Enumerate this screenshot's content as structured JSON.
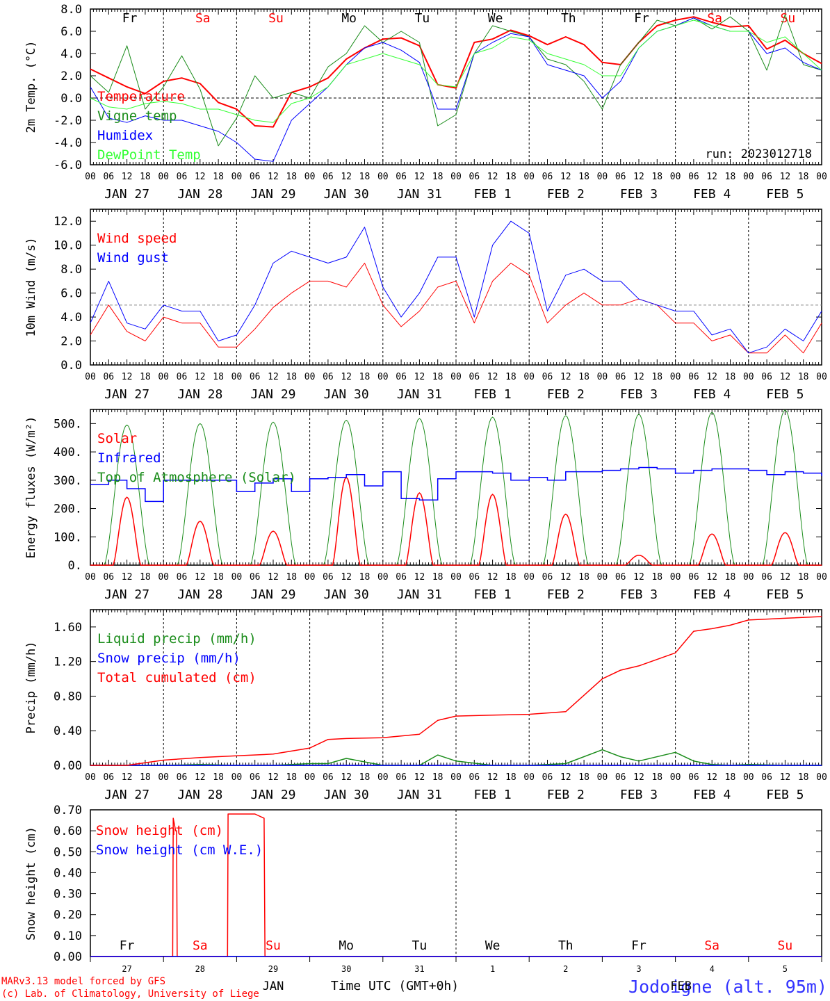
{
  "day_labels": [
    "JAN 27",
    "JAN 28",
    "JAN 29",
    "JAN 30",
    "JAN 31",
    "FEB  1",
    "FEB  2",
    "FEB  3",
    "FEB  4",
    "FEB  5"
  ],
  "hour_labels": [
    "00",
    "06",
    "12",
    "18"
  ],
  "hour_end_label": "00",
  "weekdays": [
    {
      "label": "Fr",
      "color": "#000000"
    },
    {
      "label": "Sa",
      "color": "#ff0000"
    },
    {
      "label": "Su",
      "color": "#ff0000"
    },
    {
      "label": "Mo",
      "color": "#000000"
    },
    {
      "label": "Tu",
      "color": "#000000"
    },
    {
      "label": "We",
      "color": "#000000"
    },
    {
      "label": "Th",
      "color": "#000000"
    },
    {
      "label": "Fr",
      "color": "#000000"
    },
    {
      "label": "Sa",
      "color": "#ff0000"
    },
    {
      "label": "Su",
      "color": "#ff0000"
    }
  ],
  "bottom_axis": {
    "day_numbers": [
      "27",
      "28",
      "29",
      "30",
      "31",
      "1",
      "2",
      "3",
      "4",
      "5"
    ],
    "month_labels": [
      "JAN",
      "FEB"
    ],
    "xlabel": "Time UTC (GMT+0h)"
  },
  "footer": {
    "credit_line1": "MARv3.13 model forced by GFS",
    "credit_line2": "(c) Lab. of Climatology, University of Liege",
    "station": "Jodoigne (alt. 95m)"
  },
  "colors": {
    "red": "#ff0000",
    "green": "#1a8c1a",
    "blue": "#0000ff",
    "lightgreen": "#33ff33",
    "station": "#3333ff"
  },
  "chart_data": [
    {
      "type": "line",
      "ylabel": "2m Temp. (°C)",
      "ylim": [
        -6,
        8
      ],
      "yticks": [
        "8.0",
        "6.0",
        "4.0",
        "2.0",
        "0.0",
        "-2.0",
        "-4.0",
        "-6.0"
      ],
      "ytick_values": [
        8,
        6,
        4,
        2,
        0,
        -2,
        -4,
        -6
      ],
      "ref_line": 0,
      "annotation": "run: 2023012718",
      "show_weekdays": true,
      "x_hours": [
        0,
        6,
        12,
        18,
        24,
        30,
        36,
        42,
        48,
        54,
        60,
        66,
        72,
        78,
        84,
        90,
        96,
        102,
        108,
        114,
        120,
        126,
        132,
        138,
        144,
        150,
        156,
        162,
        168,
        174,
        180,
        186,
        192,
        198,
        204,
        210,
        216,
        222,
        228,
        234,
        240
      ],
      "series": [
        {
          "name": "Temperature",
          "color": "red",
          "width": 2,
          "values": [
            2.6,
            1.8,
            1.0,
            0.4,
            1.5,
            1.8,
            1.3,
            -0.4,
            -1.0,
            -2.5,
            -2.6,
            0.5,
            1.0,
            1.8,
            3.5,
            4.5,
            5.3,
            5.4,
            4.7,
            1.2,
            0.9,
            5.0,
            5.3,
            6.1,
            5.6,
            4.8,
            5.5,
            4.8,
            3.2,
            3.0,
            5.0,
            6.5,
            7.0,
            7.3,
            6.8,
            6.4,
            6.5,
            4.4,
            5.2,
            4.0,
            3.1
          ]
        },
        {
          "name": "Vigne temp",
          "color": "green",
          "width": 1,
          "values": [
            2.0,
            0.5,
            4.7,
            -1.0,
            1.0,
            3.8,
            0.8,
            -4.3,
            -1.8,
            2.0,
            0.0,
            0.5,
            0.0,
            2.8,
            4.0,
            6.5,
            5.0,
            6.0,
            5.0,
            -2.5,
            -1.5,
            4.0,
            6.5,
            6.0,
            5.5,
            3.5,
            3.0,
            1.5,
            -1.0,
            3.0,
            5.0,
            7.0,
            6.5,
            7.2,
            6.2,
            7.3,
            6.0,
            2.5,
            7.5,
            3.0,
            2.5
          ]
        },
        {
          "name": "Humidex",
          "color": "blue",
          "width": 1,
          "values": [
            1.0,
            -1.8,
            -2.2,
            -1.6,
            -2.0,
            -2.0,
            -2.5,
            -3.0,
            -4.0,
            -5.5,
            -5.7,
            -2.0,
            -0.5,
            1.0,
            3.0,
            4.5,
            5.0,
            4.3,
            3.2,
            -1.0,
            -1.0,
            4.0,
            5.0,
            5.8,
            5.5,
            3.0,
            2.5,
            2.0,
            0.0,
            1.5,
            4.5,
            6.0,
            6.5,
            7.2,
            6.5,
            6.0,
            6.0,
            4.0,
            4.5,
            3.2,
            2.5
          ]
        },
        {
          "name": "DewPoint Temp",
          "color": "lightgreen",
          "width": 1,
          "values": [
            0.0,
            -0.8,
            -1.0,
            -0.5,
            -0.3,
            -0.5,
            -1.0,
            -1.0,
            -1.5,
            -2.0,
            -2.2,
            -0.5,
            0.0,
            1.0,
            3.0,
            3.5,
            4.0,
            3.5,
            3.0,
            1.2,
            1.0,
            4.0,
            4.5,
            5.5,
            5.2,
            4.0,
            3.5,
            3.0,
            2.0,
            2.0,
            4.5,
            6.0,
            6.5,
            7.0,
            6.5,
            6.0,
            6.0,
            5.0,
            5.5,
            4.0,
            2.5
          ]
        }
      ]
    },
    {
      "type": "line",
      "ylabel": "10m Wind (m/s)",
      "ylim": [
        0,
        13
      ],
      "yticks": [
        "0.0",
        "2.0",
        "4.0",
        "6.0",
        "8.0",
        "10.0",
        "12.0"
      ],
      "ytick_values": [
        0,
        2,
        4,
        6,
        8,
        10,
        12
      ],
      "ref_line": 5,
      "x_hours": [
        0,
        6,
        12,
        18,
        24,
        30,
        36,
        42,
        48,
        54,
        60,
        66,
        72,
        78,
        84,
        90,
        96,
        102,
        108,
        114,
        120,
        126,
        132,
        138,
        144,
        150,
        156,
        162,
        168,
        174,
        180,
        186,
        192,
        198,
        204,
        210,
        216,
        222,
        228,
        234,
        240
      ],
      "series": [
        {
          "name": "Wind speed",
          "color": "red",
          "width": 1,
          "values": [
            2.5,
            5.0,
            2.8,
            2.0,
            4.0,
            3.5,
            3.5,
            1.5,
            1.5,
            3.0,
            4.8,
            6.0,
            7.0,
            7.0,
            6.5,
            8.5,
            5.0,
            3.2,
            4.5,
            6.5,
            7.0,
            3.5,
            7.0,
            8.5,
            7.5,
            3.5,
            5.0,
            6.0,
            5.0,
            5.0,
            5.5,
            5.0,
            3.5,
            3.5,
            2.0,
            2.5,
            1.0,
            1.0,
            2.5,
            1.0,
            3.5
          ]
        },
        {
          "name": "Wind gust",
          "color": "blue",
          "width": 1,
          "values": [
            3.5,
            7.0,
            3.5,
            3.0,
            5.0,
            4.5,
            4.5,
            2.0,
            2.5,
            5.0,
            8.5,
            9.5,
            9.0,
            8.5,
            9.0,
            11.5,
            6.5,
            4.0,
            6.0,
            9.0,
            9.0,
            4.0,
            10.0,
            12.0,
            11.0,
            4.5,
            7.5,
            8.0,
            7.0,
            7.0,
            5.5,
            5.0,
            4.5,
            4.5,
            2.5,
            3.0,
            1.0,
            1.5,
            3.0,
            2.0,
            4.5
          ]
        }
      ]
    },
    {
      "type": "line",
      "ylabel": "Energy fluxes (W/m²)",
      "ylim": [
        0,
        550
      ],
      "yticks": [
        "0.",
        "100.",
        "200.",
        "300.",
        "400.",
        "500."
      ],
      "ytick_values": [
        0,
        100,
        200,
        300,
        400,
        500
      ],
      "daily_peaks": {
        "toa": [
          495,
          500,
          505,
          512,
          518,
          523,
          528,
          533,
          540,
          548
        ],
        "solar": [
          240,
          155,
          120,
          310,
          255,
          250,
          180,
          35,
          110,
          115
        ]
      },
      "infrared": {
        "x_hours": [
          0,
          6,
          12,
          18,
          24,
          30,
          36,
          42,
          48,
          54,
          60,
          66,
          72,
          78,
          84,
          90,
          96,
          102,
          108,
          114,
          120,
          126,
          132,
          138,
          144,
          150,
          156,
          162,
          168,
          174,
          180,
          186,
          192,
          198,
          204,
          210,
          216,
          222,
          228,
          234,
          240
        ],
        "values": [
          285,
          300,
          270,
          225,
          300,
          300,
          300,
          300,
          260,
          290,
          305,
          260,
          305,
          310,
          320,
          280,
          330,
          235,
          230,
          305,
          330,
          330,
          325,
          300,
          310,
          300,
          330,
          330,
          335,
          340,
          345,
          340,
          325,
          335,
          340,
          340,
          335,
          320,
          330,
          325,
          315
        ]
      },
      "series": [
        {
          "name": "Solar",
          "color": "red"
        },
        {
          "name": "Infrared",
          "color": "blue"
        },
        {
          "name": "Top of Atmosphere (Solar)",
          "color": "green"
        }
      ]
    },
    {
      "type": "line",
      "ylabel": "Precip (mm/h)",
      "ylim": [
        0,
        1.8
      ],
      "yticks": [
        "0.00",
        "0.40",
        "0.80",
        "1.20",
        "1.60"
      ],
      "ytick_values": [
        0,
        0.4,
        0.8,
        1.2,
        1.6
      ],
      "x_hours": [
        0,
        12,
        24,
        36,
        48,
        60,
        72,
        78,
        84,
        96,
        108,
        114,
        120,
        132,
        144,
        156,
        168,
        174,
        180,
        192,
        198,
        204,
        210,
        216,
        228,
        240
      ],
      "series": [
        {
          "name": "Liquid precip (mm/h)",
          "color": "green",
          "values": [
            0,
            0,
            0,
            0.01,
            0,
            0,
            0.02,
            0.02,
            0.08,
            0,
            0,
            0.12,
            0.05,
            0,
            0,
            0.02,
            0.18,
            0.1,
            0.05,
            0.15,
            0.05,
            0.01,
            0,
            0.01,
            0,
            0
          ]
        },
        {
          "name": "Snow precip (mm/h)",
          "color": "blue",
          "values": [
            0,
            0,
            0,
            0,
            0,
            0,
            0,
            0,
            0,
            0,
            0,
            0,
            0,
            0,
            0,
            0,
            0,
            0,
            0,
            0,
            0,
            0,
            0,
            0,
            0,
            0
          ]
        },
        {
          "name": "Total cumulated (cm)",
          "color": "red",
          "values": [
            0,
            0,
            0.06,
            0.09,
            0.11,
            0.13,
            0.2,
            0.3,
            0.31,
            0.32,
            0.36,
            0.52,
            0.57,
            0.58,
            0.59,
            0.62,
            1.0,
            1.1,
            1.15,
            1.3,
            1.55,
            1.58,
            1.62,
            1.68,
            1.7,
            1.72
          ]
        }
      ]
    },
    {
      "type": "line",
      "ylabel": "Snow height (cm)",
      "ylim": [
        0,
        0.7
      ],
      "yticks": [
        "0.00",
        "0.10",
        "0.20",
        "0.30",
        "0.40",
        "0.50",
        "0.60",
        "0.70"
      ],
      "ytick_values": [
        0,
        0.1,
        0.2,
        0.3,
        0.4,
        0.5,
        0.6,
        0.7
      ],
      "weekdays_at_bottom": true,
      "x_hours": [
        0,
        27,
        27.2,
        28,
        28.3,
        28.5,
        45,
        45.2,
        46,
        54,
        57,
        57.3,
        240
      ],
      "series": [
        {
          "name": "Snow height (cm)",
          "color": "red",
          "values": [
            0,
            0,
            0.66,
            0.6,
            0.6,
            0,
            0,
            0.68,
            0.68,
            0.68,
            0.66,
            0,
            0
          ]
        },
        {
          "name": "Snow height (cm W.E.)",
          "color": "blue",
          "values": [
            0,
            0,
            0,
            0,
            0,
            0,
            0,
            0,
            0,
            0,
            0,
            0,
            0
          ]
        }
      ]
    }
  ]
}
